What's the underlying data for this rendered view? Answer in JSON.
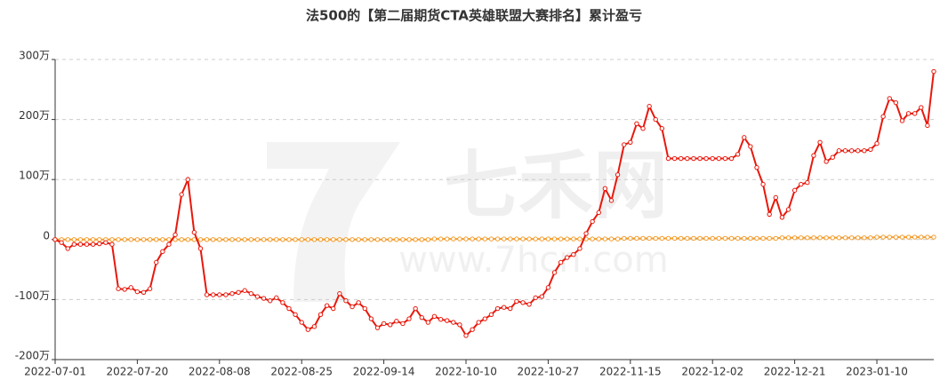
{
  "chart_data": {
    "type": "line",
    "title": "法500的【第二届期货CTA英雄联盟大赛排名】累计盈亏",
    "watermark": "七禾网",
    "watermark_url": "www.7hcn.com",
    "categories": [
      "2022-07-01",
      null,
      null,
      null,
      null,
      null,
      null,
      null,
      null,
      null,
      null,
      null,
      null,
      "2022-07-20",
      null,
      null,
      null,
      null,
      null,
      null,
      null,
      null,
      null,
      null,
      null,
      null,
      "2022-08-08",
      null,
      null,
      null,
      null,
      null,
      null,
      null,
      null,
      null,
      null,
      null,
      null,
      "2022-08-25",
      null,
      null,
      null,
      null,
      null,
      null,
      null,
      null,
      null,
      null,
      null,
      null,
      "2022-09-14",
      null,
      null,
      null,
      null,
      null,
      null,
      null,
      null,
      null,
      null,
      null,
      null,
      "2022-10-10",
      null,
      null,
      null,
      null,
      null,
      null,
      null,
      null,
      null,
      null,
      null,
      null,
      "2022-10-27",
      null,
      null,
      null,
      null,
      null,
      null,
      null,
      null,
      null,
      null,
      null,
      null,
      "2022-11-15",
      null,
      null,
      null,
      null,
      null,
      null,
      null,
      null,
      null,
      null,
      null,
      null,
      "2022-12-02",
      null,
      null,
      null,
      null,
      null,
      null,
      null,
      null,
      null,
      null,
      null,
      null,
      "2022-12-21",
      null,
      null,
      null,
      null,
      null,
      null,
      null,
      null,
      null,
      null,
      null,
      null,
      "2023-01-10",
      null,
      null,
      null,
      null,
      null,
      null,
      null,
      null,
      null
    ],
    "series": [
      {
        "color": "#e8180c",
        "values": [
          0,
          -5,
          -15,
          -8,
          -8,
          -8,
          -8,
          -7,
          -5,
          -8,
          -82,
          -83,
          -80,
          -87,
          -88,
          -82,
          -38,
          -20,
          -8,
          8,
          75,
          100,
          12,
          -15,
          -92,
          -92,
          -92,
          -92,
          -90,
          -88,
          -85,
          -90,
          -95,
          -98,
          -102,
          -97,
          -105,
          -115,
          -125,
          -138,
          -150,
          -145,
          -125,
          -110,
          -115,
          -90,
          -102,
          -112,
          -105,
          -115,
          -132,
          -147,
          -140,
          -142,
          -136,
          -140,
          -132,
          -115,
          -130,
          -138,
          -128,
          -133,
          -135,
          -138,
          -142,
          -160,
          -150,
          -138,
          -132,
          -125,
          -115,
          -113,
          -115,
          -103,
          -105,
          -108,
          -97,
          -95,
          -80,
          -55,
          -38,
          -30,
          -25,
          -15,
          10,
          30,
          45,
          85,
          65,
          108,
          158,
          162,
          193,
          185,
          222,
          200,
          185,
          135,
          135,
          135,
          135,
          135,
          135,
          135,
          135,
          135,
          135,
          135,
          142,
          170,
          155,
          120,
          92,
          42,
          70,
          37,
          50,
          82,
          92,
          95,
          140,
          162,
          130,
          137,
          148,
          148,
          148,
          148,
          148,
          150,
          160,
          205,
          235,
          228,
          198,
          210,
          210,
          220,
          190,
          280
        ]
      },
      {
        "color": "#f39c2b",
        "values": [
          0,
          0,
          0,
          0,
          0,
          0,
          0,
          0,
          0,
          0,
          0,
          0,
          0,
          0,
          0,
          0,
          0,
          0,
          0,
          0,
          0,
          0,
          0,
          0,
          0,
          0,
          0,
          0,
          0,
          0,
          0,
          0,
          0,
          0,
          0,
          0,
          0,
          0,
          0,
          0,
          0,
          0,
          0,
          0,
          0,
          0,
          0,
          0,
          0,
          0,
          0,
          0,
          0,
          0,
          0,
          0,
          0,
          0,
          0,
          0,
          1,
          1,
          1,
          1,
          1,
          1,
          1,
          1,
          1,
          1,
          1,
          1,
          1,
          1,
          1,
          1,
          1,
          1,
          1,
          1,
          1,
          1,
          1,
          1,
          1,
          1,
          1,
          1,
          1,
          1,
          2,
          2,
          2,
          2,
          2,
          2,
          2,
          2,
          2,
          2,
          2,
          2,
          2,
          2,
          2,
          2,
          2,
          2,
          2,
          2,
          2,
          2,
          2,
          2,
          2,
          3,
          3,
          3,
          3,
          3,
          3,
          3,
          3,
          3,
          3,
          3,
          3,
          3,
          3,
          3,
          4,
          4,
          4,
          4,
          4,
          4,
          4,
          4,
          4,
          4
        ]
      }
    ],
    "ylim": [
      -200,
      300
    ],
    "yticks": [
      {
        "value": -200,
        "label": "-200万"
      },
      {
        "value": -100,
        "label": "-100万"
      },
      0,
      {
        "value": 100,
        "label": "100万"
      },
      {
        "value": 200,
        "label": "200万"
      },
      {
        "value": 300,
        "label": "300万"
      }
    ],
    "grid": true
  }
}
